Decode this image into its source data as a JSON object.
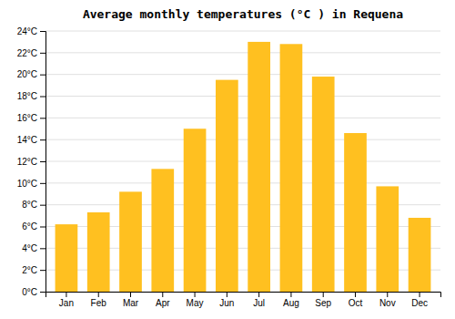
{
  "chart_data": {
    "type": "bar",
    "title": "Average monthly temperatures (°C ) in Requena",
    "categories": [
      "Jan",
      "Feb",
      "Mar",
      "Apr",
      "May",
      "Jun",
      "Jul",
      "Aug",
      "Sep",
      "Oct",
      "Nov",
      "Dec"
    ],
    "values": [
      6.2,
      7.3,
      9.2,
      11.3,
      15.0,
      19.5,
      23.0,
      22.8,
      19.8,
      14.6,
      9.7,
      6.8
    ],
    "color": "#FFC020",
    "ylim": [
      0,
      24
    ],
    "yticks": [
      {
        "value": 0,
        "label": "0°C"
      },
      {
        "value": 2,
        "label": "2°C"
      },
      {
        "value": 4,
        "label": "4°C"
      },
      {
        "value": 6,
        "label": "6°C"
      },
      {
        "value": 8,
        "label": "8°C"
      },
      {
        "value": 10,
        "label": "10°C"
      },
      {
        "value": 12,
        "label": "12°C"
      },
      {
        "value": 14,
        "label": "14°C"
      },
      {
        "value": 16,
        "label": "16°C"
      },
      {
        "value": 18,
        "label": "18°C"
      },
      {
        "value": 20,
        "label": "20°C"
      },
      {
        "value": 22,
        "label": "22°C"
      },
      {
        "value": 24,
        "label": "24°C"
      }
    ],
    "grid": true
  }
}
